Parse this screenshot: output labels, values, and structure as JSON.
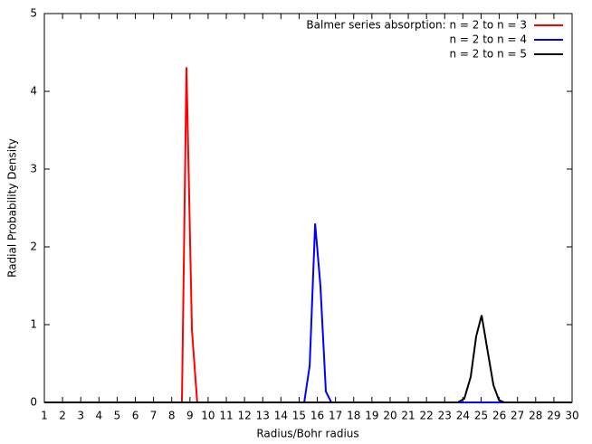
{
  "chart_data": {
    "type": "line",
    "xlabel": "Radius/Bohr radius",
    "ylabel": "Radial Probability Density",
    "xlim": [
      1,
      30
    ],
    "ylim": [
      0,
      5
    ],
    "xticks": [
      1,
      2,
      3,
      4,
      5,
      6,
      7,
      8,
      9,
      10,
      11,
      12,
      13,
      14,
      15,
      16,
      17,
      18,
      19,
      20,
      21,
      22,
      23,
      24,
      25,
      26,
      27,
      28,
      29,
      30
    ],
    "yticks": [
      0,
      1,
      2,
      3,
      4,
      5
    ],
    "legend": "upper right",
    "series": [
      {
        "name": "Balmer series absorption: n = 2 to n = 3",
        "color": "#ff0000",
        "x": [
          1,
          8.56,
          8.81,
          9.11,
          9.4,
          30
        ],
        "values": [
          0,
          0,
          4.31,
          0.93,
          0,
          0
        ]
      },
      {
        "name": "n = 2 to n = 4",
        "color": "#0000ff",
        "x": [
          1,
          15.28,
          15.58,
          15.88,
          16.17,
          16.47,
          16.77,
          30
        ],
        "values": [
          0,
          0,
          0.47,
          2.3,
          1.5,
          0.14,
          0,
          0
        ]
      },
      {
        "name": "n = 2 to n = 5",
        "color": "#000000",
        "x": [
          1,
          23.73,
          24.08,
          24.43,
          24.73,
          25.03,
          25.33,
          25.68,
          25.98,
          26.28,
          30
        ],
        "values": [
          0,
          0,
          0.05,
          0.33,
          0.85,
          1.12,
          0.7,
          0.22,
          0.03,
          0,
          0
        ]
      }
    ]
  }
}
